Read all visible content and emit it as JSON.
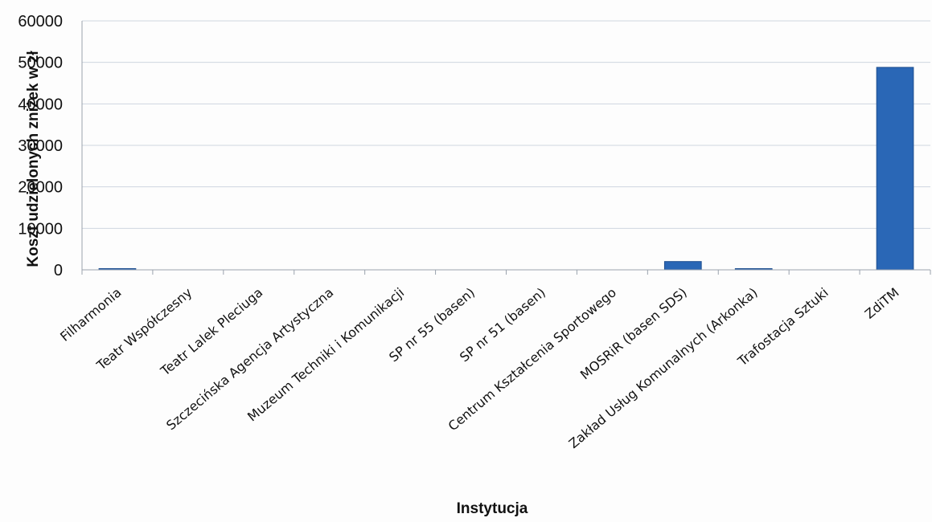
{
  "chart_data": {
    "type": "bar",
    "title": "",
    "xlabel": "Instytucja",
    "ylabel": "Koszt udzielonych zniżek w zł",
    "ylim": [
      0,
      60000
    ],
    "yticks": [
      0,
      10000,
      20000,
      30000,
      40000,
      50000,
      60000
    ],
    "ytick_labels": [
      "0",
      "10000",
      "20000",
      "30000",
      "40000",
      "50000",
      "60000"
    ],
    "grid": true,
    "legend": "none",
    "colors": {
      "bar": "#2a67b6",
      "bar_edge": "#1f4f8f",
      "grid": "#cfd6e0"
    },
    "categories": [
      "Filharmonia",
      "Teatr Współczesny",
      "Teatr Lalek Pleciuga",
      "Szczecińska Agencja Artystyczna",
      "Muzeum Techniki i Komunikacji",
      "SP nr 55 (basen)",
      "SP nr 51 (basen)",
      "Centrum Kształcenia Sportowego",
      "MOSRiR (basen SDS)",
      "Zakład Usług Komunalnych (Arkonka)",
      "Trafostacja Sztuki",
      "ZdiTM"
    ],
    "values": [
      300,
      0,
      0,
      0,
      0,
      0,
      0,
      0,
      2000,
      150,
      0,
      48800
    ]
  }
}
